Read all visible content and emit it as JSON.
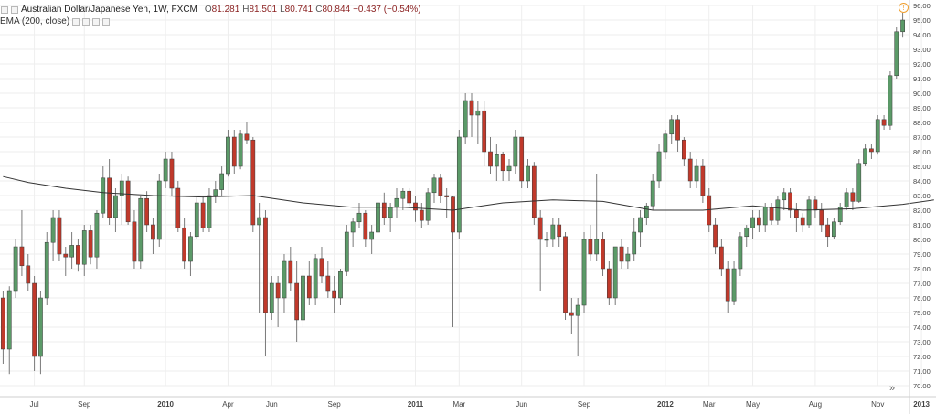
{
  "header": {
    "title": "Australian Dollar/Japanese Yen, 1W, FXCM",
    "open_label": "O",
    "open": "81.281",
    "high_label": "H",
    "high": "81.501",
    "low_label": "L",
    "low": "80.741",
    "close_label": "C",
    "close": "80.844",
    "change": "−0.437 (−0.54%)",
    "indicator": "EMA (200, close)",
    "info_icon": "!"
  },
  "colors": {
    "up": "#5b9a68",
    "down": "#c0392b",
    "wick": "#7a7a7a",
    "ema": "#333333",
    "grid": "#eeeeee",
    "axis_text": "#444444"
  },
  "scroll_button": "»",
  "chart_data": {
    "type": "candlestick",
    "symbol": "Australian Dollar/Japanese Yen, 1W, FXCM",
    "ylim": [
      70.0,
      96.0
    ],
    "y_ticks": [
      "96.00",
      "95.00",
      "94.00",
      "93.00",
      "92.00",
      "91.00",
      "90.00",
      "89.00",
      "88.00",
      "87.00",
      "86.00",
      "85.00",
      "84.00",
      "83.00",
      "82.00",
      "81.00",
      "80.00",
      "79.00",
      "78.00",
      "77.00",
      "76.00",
      "75.00",
      "74.00",
      "73.00",
      "72.00",
      "71.00",
      "70.00"
    ],
    "x_ticks": [
      {
        "label": "Jul",
        "i": 5
      },
      {
        "label": "Sep",
        "i": 13
      },
      {
        "label": "2010",
        "i": 26
      },
      {
        "label": "Apr",
        "i": 36
      },
      {
        "label": "Jun",
        "i": 43
      },
      {
        "label": "Sep",
        "i": 53
      },
      {
        "label": "2011",
        "i": 66
      },
      {
        "label": "Mar",
        "i": 73
      },
      {
        "label": "Jun",
        "i": 83
      },
      {
        "label": "Sep",
        "i": 93
      },
      {
        "label": "2012",
        "i": 106
      },
      {
        "label": "Mar",
        "i": 113
      },
      {
        "label": "May",
        "i": 120
      },
      {
        "label": "Aug",
        "i": 130
      },
      {
        "label": "Nov",
        "i": 140
      },
      {
        "label": "2013",
        "i": 147
      }
    ],
    "candles": [
      [
        76.0,
        76.5,
        71.5,
        72.5
      ],
      [
        72.5,
        76.8,
        70.8,
        76.5
      ],
      [
        76.5,
        80.0,
        76.0,
        79.5
      ],
      [
        79.5,
        82.0,
        77.5,
        78.2
      ],
      [
        78.2,
        79.0,
        76.5,
        77.0
      ],
      [
        77.0,
        77.5,
        71.0,
        72.0
      ],
      [
        72.0,
        76.5,
        70.8,
        76.0
      ],
      [
        76.0,
        80.5,
        75.5,
        79.8
      ],
      [
        79.8,
        82.0,
        78.5,
        81.5
      ],
      [
        81.5,
        82.0,
        78.5,
        79.0
      ],
      [
        79.0,
        79.5,
        77.5,
        78.8
      ],
      [
        78.8,
        80.5,
        78.0,
        79.6
      ],
      [
        79.6,
        80.0,
        77.8,
        78.3
      ],
      [
        78.3,
        81.0,
        77.5,
        80.6
      ],
      [
        80.6,
        81.0,
        78.3,
        78.8
      ],
      [
        78.8,
        82.0,
        78.0,
        81.8
      ],
      [
        81.8,
        85.0,
        81.5,
        84.2
      ],
      [
        84.2,
        85.5,
        81.0,
        81.5
      ],
      [
        81.5,
        83.5,
        80.5,
        83.0
      ],
      [
        83.0,
        84.5,
        81.0,
        84.0
      ],
      [
        84.0,
        84.3,
        81.0,
        81.2
      ],
      [
        81.2,
        82.0,
        78.0,
        78.5
      ],
      [
        78.5,
        83.0,
        78.0,
        82.8
      ],
      [
        82.8,
        83.3,
        80.5,
        81.0
      ],
      [
        81.0,
        81.5,
        79.0,
        80.0
      ],
      [
        80.0,
        84.5,
        79.5,
        84.0
      ],
      [
        84.0,
        86.0,
        83.5,
        85.5
      ],
      [
        85.5,
        86.0,
        83.0,
        83.5
      ],
      [
        83.5,
        84.0,
        80.5,
        80.8
      ],
      [
        80.8,
        81.5,
        78.0,
        78.5
      ],
      [
        78.5,
        80.5,
        77.5,
        80.2
      ],
      [
        80.2,
        83.0,
        80.0,
        82.5
      ],
      [
        82.5,
        83.0,
        80.5,
        80.8
      ],
      [
        80.8,
        83.5,
        80.5,
        83.0
      ],
      [
        83.0,
        84.0,
        82.5,
        83.4
      ],
      [
        83.4,
        85.0,
        83.0,
        84.5
      ],
      [
        84.5,
        87.5,
        84.3,
        87.0
      ],
      [
        87.0,
        87.5,
        84.5,
        85.0
      ],
      [
        85.0,
        87.5,
        84.8,
        87.2
      ],
      [
        87.2,
        88.0,
        86.5,
        86.8
      ],
      [
        86.8,
        87.0,
        80.5,
        81.0
      ],
      [
        81.0,
        82.5,
        75.0,
        81.5
      ],
      [
        81.5,
        82.0,
        72.0,
        75.0
      ],
      [
        75.0,
        77.5,
        74.5,
        77.0
      ],
      [
        77.0,
        77.5,
        74.0,
        76.0
      ],
      [
        76.0,
        79.0,
        75.0,
        78.5
      ],
      [
        78.5,
        79.5,
        76.5,
        77.0
      ],
      [
        77.0,
        78.5,
        73.0,
        74.5
      ],
      [
        74.5,
        78.0,
        74.0,
        77.5
      ],
      [
        77.5,
        78.5,
        75.5,
        76.0
      ],
      [
        76.0,
        79.0,
        75.5,
        78.7
      ],
      [
        78.7,
        79.5,
        77.0,
        77.5
      ],
      [
        77.5,
        78.5,
        76.0,
        76.5
      ],
      [
        76.5,
        77.5,
        75.0,
        76.0
      ],
      [
        76.0,
        78.0,
        75.5,
        77.8
      ],
      [
        77.8,
        81.0,
        77.5,
        80.5
      ],
      [
        80.5,
        81.5,
        79.5,
        81.2
      ],
      [
        81.2,
        82.5,
        80.8,
        81.8
      ],
      [
        81.8,
        82.0,
        79.5,
        80.0
      ],
      [
        80.0,
        81.0,
        79.0,
        80.5
      ],
      [
        80.5,
        83.0,
        78.8,
        82.5
      ],
      [
        82.5,
        83.2,
        81.0,
        81.5
      ],
      [
        81.5,
        82.5,
        80.5,
        82.2
      ],
      [
        82.2,
        83.5,
        81.5,
        82.8
      ],
      [
        82.8,
        83.5,
        82.0,
        83.3
      ],
      [
        83.3,
        83.5,
        82.3,
        82.5
      ],
      [
        82.5,
        83.0,
        81.2,
        82.0
      ],
      [
        82.0,
        82.5,
        80.8,
        81.3
      ],
      [
        81.3,
        83.5,
        81.0,
        83.2
      ],
      [
        83.2,
        84.5,
        82.5,
        84.2
      ],
      [
        84.2,
        84.5,
        82.5,
        83.0
      ],
      [
        83.0,
        83.5,
        81.5,
        82.9
      ],
      [
        82.9,
        83.0,
        74.0,
        80.5
      ],
      [
        80.5,
        87.5,
        80.0,
        87.0
      ],
      [
        87.0,
        90.0,
        86.5,
        89.5
      ],
      [
        89.5,
        90.0,
        87.0,
        88.5
      ],
      [
        88.5,
        89.5,
        86.5,
        88.8
      ],
      [
        88.8,
        89.5,
        85.0,
        86.0
      ],
      [
        86.0,
        87.0,
        84.5,
        85.0
      ],
      [
        85.0,
        86.5,
        84.0,
        85.8
      ],
      [
        85.8,
        86.0,
        84.0,
        84.7
      ],
      [
        84.7,
        85.5,
        84.0,
        85.0
      ],
      [
        85.0,
        87.5,
        84.5,
        87.0
      ],
      [
        87.0,
        87.0,
        83.5,
        84.0
      ],
      [
        84.0,
        85.5,
        83.5,
        85.0
      ],
      [
        85.0,
        85.3,
        81.0,
        81.5
      ],
      [
        81.5,
        82.0,
        76.5,
        80.0
      ],
      [
        80.0,
        80.5,
        79.5,
        80.0
      ],
      [
        80.0,
        81.5,
        79.5,
        81.0
      ],
      [
        81.0,
        81.5,
        79.5,
        80.2
      ],
      [
        80.2,
        80.5,
        74.5,
        75.0
      ],
      [
        75.0,
        76.0,
        73.5,
        74.8
      ],
      [
        74.8,
        76.0,
        72.0,
        75.5
      ],
      [
        75.5,
        80.5,
        75.0,
        80.0
      ],
      [
        80.0,
        81.0,
        78.5,
        79.0
      ],
      [
        79.0,
        84.5,
        78.5,
        80.0
      ],
      [
        80.0,
        80.5,
        77.5,
        78.0
      ],
      [
        78.0,
        78.5,
        75.5,
        76.0
      ],
      [
        76.0,
        79.5,
        75.5,
        79.5
      ],
      [
        79.5,
        80.0,
        78.0,
        78.5
      ],
      [
        78.5,
        79.5,
        78.0,
        79.0
      ],
      [
        79.0,
        81.5,
        78.5,
        80.5
      ],
      [
        80.5,
        82.0,
        79.5,
        81.5
      ],
      [
        81.5,
        82.5,
        81.0,
        82.3
      ],
      [
        82.3,
        84.5,
        82.0,
        84.0
      ],
      [
        84.0,
        86.5,
        83.5,
        86.0
      ],
      [
        86.0,
        87.5,
        85.5,
        87.2
      ],
      [
        87.2,
        88.5,
        86.5,
        88.2
      ],
      [
        88.2,
        88.5,
        86.0,
        86.8
      ],
      [
        86.8,
        87.0,
        85.0,
        85.5
      ],
      [
        85.5,
        86.0,
        83.5,
        84.0
      ],
      [
        84.0,
        85.5,
        83.5,
        85.0
      ],
      [
        85.0,
        85.5,
        82.5,
        83.0
      ],
      [
        83.0,
        83.5,
        80.5,
        81.0
      ],
      [
        81.0,
        81.5,
        79.0,
        79.5
      ],
      [
        79.5,
        80.0,
        77.5,
        78.0
      ],
      [
        78.0,
        78.5,
        75.0,
        75.8
      ],
      [
        75.8,
        78.5,
        75.5,
        78.0
      ],
      [
        78.0,
        80.5,
        77.5,
        80.2
      ],
      [
        80.2,
        81.0,
        79.5,
        80.8
      ],
      [
        80.8,
        82.0,
        80.0,
        81.5
      ],
      [
        81.5,
        82.0,
        80.5,
        81.0
      ],
      [
        81.0,
        82.5,
        80.5,
        82.2
      ],
      [
        82.2,
        82.5,
        81.0,
        81.3
      ],
      [
        81.3,
        83.0,
        81.0,
        82.7
      ],
      [
        82.7,
        83.5,
        82.0,
        83.2
      ],
      [
        83.2,
        83.5,
        81.5,
        82.0
      ],
      [
        82.0,
        82.5,
        80.5,
        81.5
      ],
      [
        81.5,
        81.8,
        80.5,
        81.0
      ],
      [
        81.0,
        83.0,
        80.8,
        82.7
      ],
      [
        82.7,
        83.0,
        81.5,
        82.0
      ],
      [
        82.0,
        82.5,
        80.5,
        81.0
      ],
      [
        81.0,
        81.5,
        79.5,
        80.2
      ],
      [
        80.2,
        81.5,
        80.0,
        81.2
      ],
      [
        81.2,
        82.5,
        81.0,
        82.2
      ],
      [
        82.2,
        83.5,
        82.0,
        83.2
      ],
      [
        83.2,
        83.5,
        82.0,
        82.6
      ],
      [
        82.6,
        85.5,
        82.5,
        85.2
      ],
      [
        85.2,
        86.5,
        85.0,
        86.2
      ],
      [
        86.2,
        86.5,
        85.5,
        86.0
      ],
      [
        86.0,
        88.5,
        85.8,
        88.2
      ],
      [
        88.2,
        88.5,
        87.5,
        87.8
      ],
      [
        87.8,
        91.5,
        87.5,
        91.2
      ],
      [
        91.2,
        94.5,
        91.0,
        94.2
      ],
      [
        94.2,
        95.5,
        93.8,
        95.0
      ]
    ],
    "ema": [
      [
        0,
        84.3
      ],
      [
        4,
        83.9
      ],
      [
        10,
        83.5
      ],
      [
        16,
        83.2
      ],
      [
        24,
        83.0
      ],
      [
        32,
        82.9
      ],
      [
        40,
        83.0
      ],
      [
        48,
        82.5
      ],
      [
        56,
        82.2
      ],
      [
        64,
        82.2
      ],
      [
        72,
        82.0
      ],
      [
        80,
        82.5
      ],
      [
        88,
        82.7
      ],
      [
        96,
        82.6
      ],
      [
        104,
        82.0
      ],
      [
        112,
        82.0
      ],
      [
        120,
        82.3
      ],
      [
        128,
        82.0
      ],
      [
        136,
        82.1
      ],
      [
        144,
        82.4
      ],
      [
        149,
        82.7
      ]
    ]
  }
}
